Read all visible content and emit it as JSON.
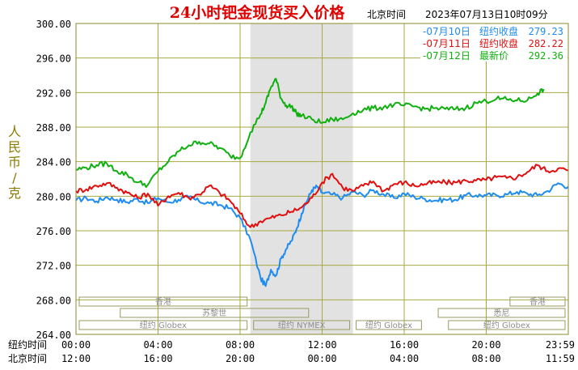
{
  "chart_data": {
    "type": "line",
    "title": "24小时钯金现货买入价格",
    "timezone_label": "北京时间",
    "timestamp": "2023年07月13日10时09分",
    "ylabel": "人民币/克",
    "ylim": [
      264,
      300
    ],
    "y_ticks": [
      "300.00",
      "296.00",
      "292.00",
      "288.00",
      "284.00",
      "280.00",
      "276.00",
      "272.00",
      "268.00",
      "264.00"
    ],
    "x_ticks": {
      "ny_label": "纽约时间",
      "ny": [
        "00:00",
        "04:00",
        "08:00",
        "12:00",
        "16:00",
        "20:00",
        "23:59"
      ],
      "bj_label": "北京时间",
      "bj": [
        "12:00",
        "16:00",
        "20:00",
        "00:00",
        "04:00",
        "08:00",
        "11:59"
      ]
    },
    "grid": true,
    "legend_position": "top-right",
    "colors": {
      "axis": "#8a8a2a",
      "grid": "#a8a840",
      "title": "#e00000",
      "band": "#e2e2e2",
      "jul10": "#1e8cf0",
      "jul11": "#e01010",
      "jul12": "#10b010",
      "session_text": "#8c8c8c",
      "tick_text": "#000000"
    },
    "series": [
      {
        "name": "-07月10日",
        "status": "纽约收盘",
        "value": "279.23",
        "x": [
          0,
          0.5,
          1,
          1.5,
          2,
          2.5,
          3,
          3.5,
          4,
          4.5,
          5,
          5.5,
          6,
          6.5,
          7,
          7.5,
          8,
          8.5,
          9,
          9.25,
          9.5,
          9.75,
          10,
          10.25,
          10.5,
          10.75,
          11,
          11.25,
          11.5,
          11.75,
          12,
          12.5,
          13,
          13.5,
          14,
          14.5,
          15,
          15.5,
          16,
          16.5,
          17,
          17.5,
          18,
          18.5,
          19,
          19.5,
          20,
          20.5,
          21,
          21.5,
          22,
          22.5,
          23,
          23.5,
          24
        ],
        "values": [
          279.5,
          279.8,
          279.4,
          279.9,
          279.6,
          279.3,
          279.7,
          279.2,
          279.8,
          279.3,
          279.6,
          279.9,
          279.4,
          279.2,
          279.0,
          278.6,
          277.5,
          275.0,
          270.5,
          269.6,
          271.5,
          270.8,
          272.8,
          273.9,
          274.8,
          276.2,
          278.0,
          279.4,
          280.7,
          281.1,
          280.4,
          280.2,
          279.8,
          280.5,
          280.1,
          280.7,
          280.2,
          279.8,
          280.3,
          279.9,
          279.7,
          279.5,
          279.6,
          279.6,
          280.1,
          280.1,
          280.1,
          280.1,
          280.2,
          280.5,
          280.3,
          280.1,
          280.6,
          281.5,
          281.1
        ]
      },
      {
        "name": "-07月11日",
        "status": "纽约收盘",
        "value": "282.22",
        "x": [
          0,
          0.5,
          1,
          1.5,
          2,
          2.5,
          3,
          3.5,
          4,
          4.5,
          5,
          5.5,
          6,
          6.5,
          7,
          7.5,
          8,
          8.5,
          9,
          9.5,
          10,
          10.5,
          11,
          11.5,
          12,
          12.5,
          13,
          13.5,
          14,
          14.5,
          15,
          15.5,
          16,
          16.5,
          17,
          17.5,
          18,
          18.5,
          19,
          19.5,
          20,
          20.5,
          21,
          21.5,
          22,
          22.5,
          23,
          23.5,
          24
        ],
        "values": [
          280.6,
          280.8,
          281.2,
          281.5,
          281.0,
          280.4,
          279.8,
          280.3,
          278.9,
          280.0,
          280.4,
          279.8,
          280.2,
          281.2,
          280.4,
          279.5,
          278.0,
          276.4,
          277.1,
          277.5,
          277.8,
          278.2,
          278.7,
          279.8,
          281.6,
          282.6,
          281.0,
          280.6,
          281.2,
          281.7,
          280.6,
          281.4,
          281.6,
          281.2,
          281.4,
          281.6,
          281.6,
          281.6,
          281.8,
          281.8,
          281.9,
          282.2,
          282.1,
          282.2,
          282.8,
          283.6,
          282.9,
          283.2,
          283.0
        ]
      },
      {
        "name": "-07月12日",
        "status": "最新价",
        "value": "292.36",
        "x": [
          0,
          0.5,
          1,
          1.5,
          2,
          2.5,
          3,
          3.5,
          4,
          4.5,
          5,
          5.5,
          6,
          6.5,
          7,
          7.5,
          8,
          8.5,
          9,
          9.25,
          9.5,
          9.75,
          10,
          10.25,
          10.5,
          10.75,
          11,
          11.5,
          12,
          12.5,
          13,
          13.5,
          14,
          14.5,
          15,
          15.5,
          16,
          16.5,
          17,
          17.5,
          18,
          18.5,
          19,
          19.5,
          20,
          20.5,
          21,
          21.5,
          22,
          22.5,
          22.8
        ],
        "values": [
          283.1,
          283.3,
          283.6,
          283.8,
          282.9,
          282.5,
          281.6,
          281.3,
          282.9,
          284.0,
          285.2,
          285.9,
          286.3,
          286.1,
          285.6,
          284.7,
          284.4,
          287.4,
          289.5,
          290.8,
          292.6,
          293.6,
          291.3,
          290.5,
          290.4,
          289.6,
          289.3,
          288.9,
          288.5,
          288.9,
          288.9,
          289.6,
          290.0,
          290.2,
          290.3,
          290.6,
          290.5,
          290.4,
          290.1,
          290.2,
          290.1,
          290.1,
          290.2,
          290.8,
          291.0,
          291.3,
          291.2,
          291.1,
          291.1,
          291.9,
          292.4
        ]
      }
    ],
    "highlight_band_x": [
      8.5,
      13.5
    ],
    "sessions": [
      {
        "label": "香港",
        "x": [
          0,
          8.5
        ],
        "row": 1
      },
      {
        "label": "苏黎世",
        "x": [
          2.0,
          11.5
        ],
        "row": 2
      },
      {
        "label": "纽约 Globex",
        "x": [
          0,
          8.5
        ],
        "row": 3
      },
      {
        "label": "纽约 NYMEX",
        "x": [
          8.5,
          13.5
        ],
        "row": 3
      },
      {
        "label": "纽约 Globex",
        "x": [
          13.5,
          17.0
        ],
        "row": 3
      },
      {
        "label": "香港",
        "x": [
          21.0,
          24
        ],
        "row": 1
      },
      {
        "label": "悉尼",
        "x": [
          17.5,
          24
        ],
        "row": 2
      },
      {
        "label": "纽约 Globex",
        "x": [
          18.0,
          24
        ],
        "row": 3
      }
    ]
  }
}
